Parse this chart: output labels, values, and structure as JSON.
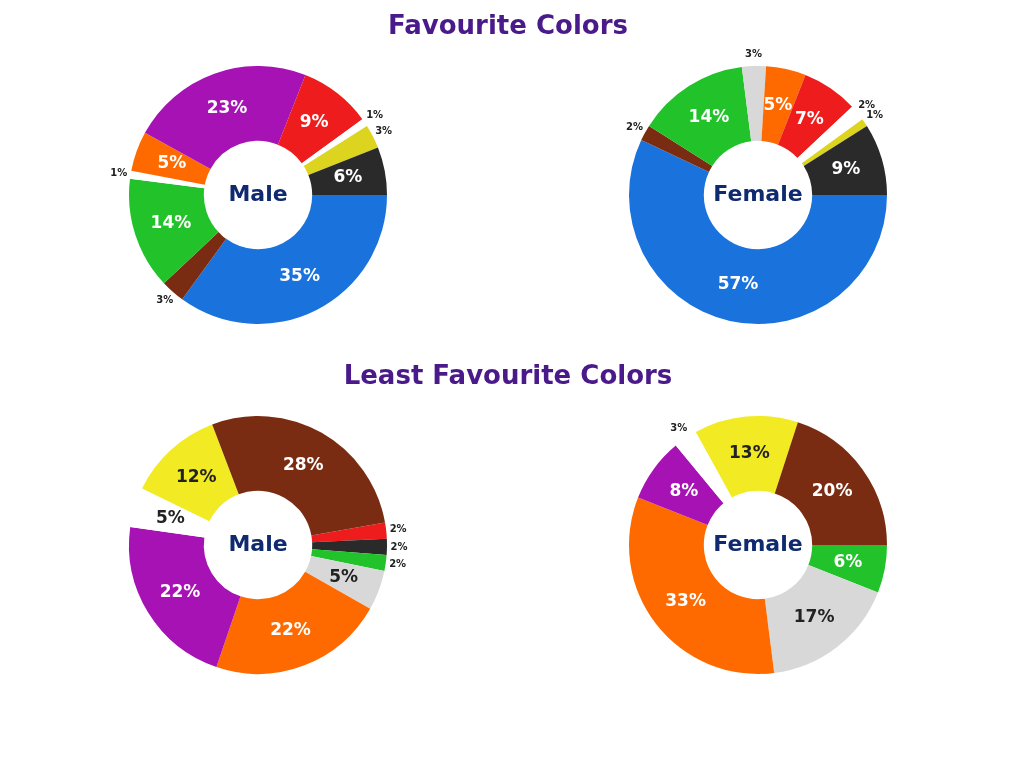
{
  "chart_data": [
    {
      "type": "donut",
      "title": "Favourite Colors",
      "subtitle": "Male",
      "legend": false,
      "categories": [
        null,
        null,
        null,
        null,
        null,
        null,
        null,
        null,
        null,
        null
      ],
      "values": [
        35,
        3,
        14,
        1,
        5,
        23,
        9,
        1,
        3,
        6
      ],
      "value_labels": [
        "35%",
        "3%",
        "14%",
        "1%",
        "5%",
        "23%",
        "9%",
        "1%",
        "3%",
        "6%"
      ],
      "colors": [
        "#1a72dc",
        "#7a2c12",
        "#22c22a",
        "#ffffff",
        "#ff6a00",
        "#a612b4",
        "#ee1c1c",
        "#ffffff",
        "#dcd41e",
        "#2a2a2a"
      ]
    },
    {
      "type": "donut",
      "subtitle": "Female",
      "legend": false,
      "categories": [
        null,
        null,
        null,
        null,
        null,
        null,
        null,
        null,
        null
      ],
      "values": [
        57,
        2,
        14,
        3,
        5,
        7,
        2,
        1,
        9
      ],
      "value_labels": [
        "57%",
        "2%",
        "14%",
        "3%",
        "5%",
        "7%",
        "2%",
        "1%",
        "9%"
      ],
      "colors": [
        "#1a72dc",
        "#7a2c12",
        "#22c22a",
        "#d8d8d8",
        "#ff6a00",
        "#ee1c1c",
        "#ffffff",
        "#dcd41e",
        "#2a2a2a"
      ]
    },
    {
      "type": "donut",
      "title": "Least Favourite Colors",
      "subtitle": "Male",
      "legend": false,
      "categories": [
        null,
        null,
        null,
        null,
        null,
        null,
        null,
        null,
        null
      ],
      "values": [
        2,
        2,
        2,
        5,
        22,
        22,
        5,
        12,
        28
      ],
      "value_labels": [
        "2%",
        "2%",
        "2%",
        "5%",
        "22%",
        "22%",
        "5%",
        "12%",
        "28%"
      ],
      "colors": [
        "#ee1c1c",
        "#2a2a2a",
        "#22c22a",
        "#d8d8d8",
        "#ff6a00",
        "#a612b4",
        "#ffffff",
        "#f2ea22",
        "#7a2c12"
      ]
    },
    {
      "type": "donut",
      "subtitle": "Female",
      "legend": false,
      "categories": [
        null,
        null,
        null,
        null,
        null,
        null,
        null
      ],
      "values": [
        6,
        17,
        33,
        8,
        3,
        13,
        20
      ],
      "value_labels": [
        "6%",
        "17%",
        "33%",
        "8%",
        "3%",
        "13%",
        "20%"
      ],
      "colors": [
        "#22c22a",
        "#d8d8d8",
        "#ff6a00",
        "#a612b4",
        "#ffffff",
        "#f2ea22",
        "#7a2c12"
      ]
    }
  ]
}
